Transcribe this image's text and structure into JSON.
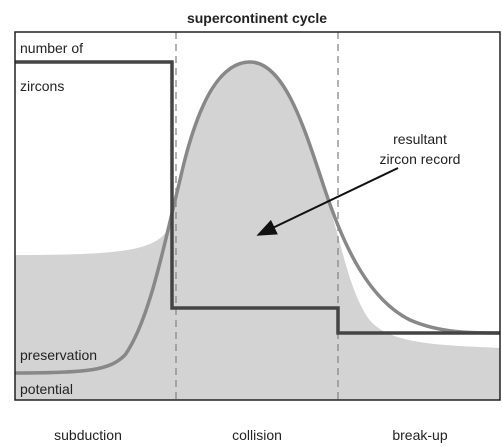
{
  "title": "supercontinent cycle",
  "curves": {
    "zircons": [
      "number of",
      "zircons"
    ],
    "preservation": [
      "preservation",
      "potential"
    ],
    "record": [
      "resultant",
      "zircon record"
    ]
  },
  "phases": [
    "subduction",
    "collision",
    "break-up"
  ]
}
